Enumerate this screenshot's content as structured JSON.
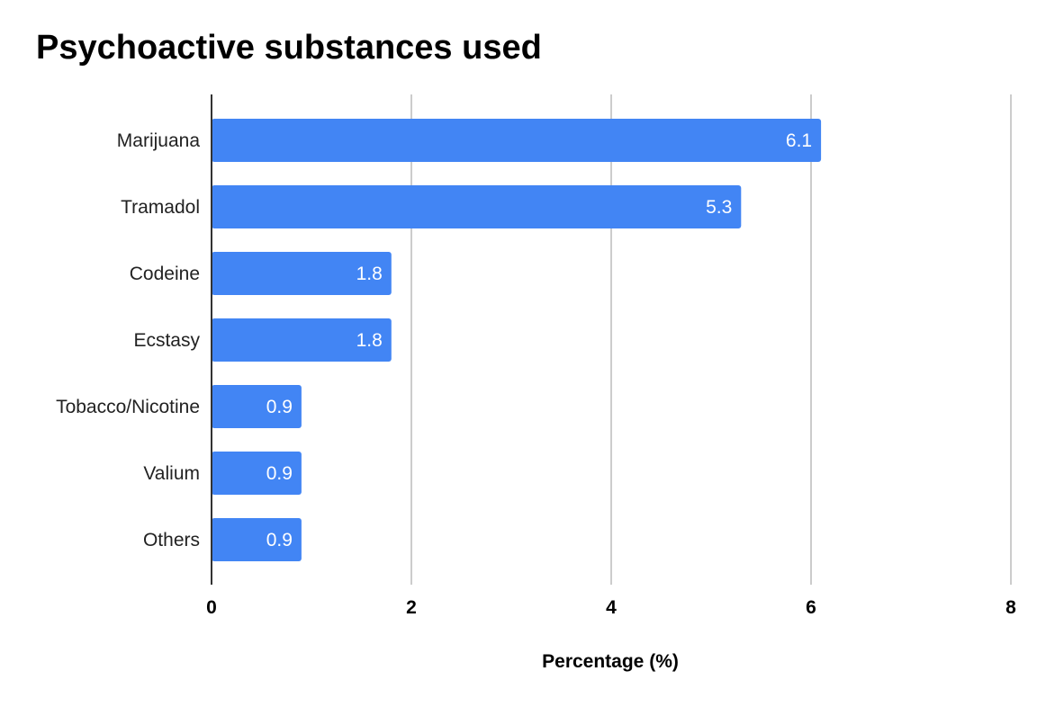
{
  "chart_data": {
    "type": "bar",
    "orientation": "horizontal",
    "title": "Psychoactive substances used",
    "xlabel": "Percentage (%)",
    "ylabel": "",
    "categories": [
      "Marijuana",
      "Tramadol",
      "Codeine",
      "Ecstasy",
      "Tobacco/Nicotine",
      "Valium",
      "Others"
    ],
    "values": [
      6.1,
      5.3,
      1.8,
      1.8,
      0.9,
      0.9,
      0.9
    ],
    "xlim": [
      0,
      8
    ],
    "xticks": [
      "0",
      "2",
      "4",
      "6",
      "8"
    ],
    "grid": true,
    "legend": "none",
    "data_labels": true,
    "bar_color": "#4285f4",
    "grid_color": "#cccccc"
  }
}
